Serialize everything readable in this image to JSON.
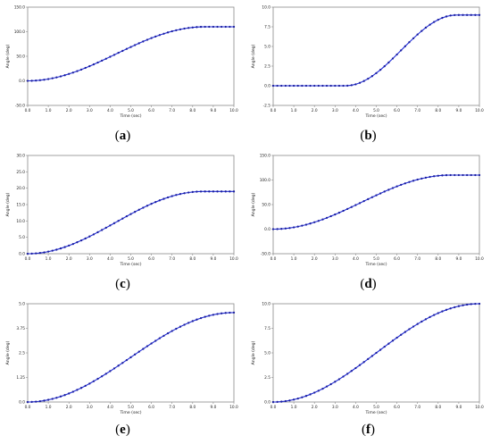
{
  "chart_data": [
    {
      "type": "line",
      "panel_label": "a",
      "xlabel": "Time (sec)",
      "ylabel": "Angle (deg)",
      "xlim": [
        0,
        10
      ],
      "ylim": [
        -50,
        150
      ],
      "xticks": [
        "0.0",
        "1.0",
        "2.0",
        "3.0",
        "4.0",
        "5.0",
        "6.0",
        "7.0",
        "8.0",
        "9.0",
        "10.0"
      ],
      "yticks": [
        "-50.0",
        "0.0",
        "50.0",
        "100.0",
        "150.0"
      ],
      "series": [
        {
          "start_value": 0,
          "end_value": 110,
          "ramp_start": 0,
          "ramp_end": 8.6,
          "color": "#1f2bd8"
        }
      ]
    },
    {
      "type": "line",
      "panel_label": "b",
      "xlabel": "Time (sec)",
      "ylabel": "Angle (deg)",
      "xlim": [
        0,
        10
      ],
      "ylim": [
        -2.5,
        10
      ],
      "xticks": [
        "0.0",
        "1.0",
        "2.0",
        "3.0",
        "4.0",
        "5.0",
        "6.0",
        "7.0",
        "8.0",
        "9.0",
        "10.0"
      ],
      "yticks": [
        "-2.5",
        "0.0",
        "2.5",
        "5.0",
        "7.5",
        "10.0"
      ],
      "series": [
        {
          "start_value": 0,
          "end_value": 9,
          "ramp_start": 3.5,
          "ramp_end": 8.9,
          "color": "#1f2bd8"
        }
      ]
    },
    {
      "type": "line",
      "panel_label": "c",
      "xlabel": "Time (sec)",
      "ylabel": "Angle (deg)",
      "xlim": [
        0,
        10
      ],
      "ylim": [
        0,
        30
      ],
      "xticks": [
        "0.0",
        "1.0",
        "2.0",
        "3.0",
        "4.0",
        "5.0",
        "6.0",
        "7.0",
        "8.0",
        "9.0",
        "10.0"
      ],
      "yticks": [
        "0.0",
        "5.0",
        "10.0",
        "15.0",
        "20.0",
        "25.0",
        "30.0"
      ],
      "series": [
        {
          "start_value": 0,
          "end_value": 19,
          "ramp_start": 0,
          "ramp_end": 8.5,
          "color": "#1f2bd8"
        }
      ]
    },
    {
      "type": "line",
      "panel_label": "d",
      "xlabel": "Time (sec)",
      "ylabel": "Angle (deg)",
      "xlim": [
        0,
        10
      ],
      "ylim": [
        -50,
        150
      ],
      "xticks": [
        "0.0",
        "1.0",
        "2.0",
        "3.0",
        "4.0",
        "5.0",
        "6.0",
        "7.0",
        "8.0",
        "9.0",
        "10.0"
      ],
      "yticks": [
        "-50.0",
        "0.0",
        "50.0",
        "100.0",
        "150.0"
      ],
      "series": [
        {
          "start_value": 0,
          "end_value": 110,
          "ramp_start": 0,
          "ramp_end": 8.6,
          "color": "#1f2bd8"
        }
      ]
    },
    {
      "type": "line",
      "panel_label": "e",
      "xlabel": "Time (sec)",
      "ylabel": "Angle (deg)",
      "xlim": [
        0,
        10
      ],
      "ylim": [
        0,
        5
      ],
      "xticks": [
        "0.0",
        "1.0",
        "2.0",
        "3.0",
        "4.0",
        "5.0",
        "6.0",
        "7.0",
        "8.0",
        "9.0",
        "10.0"
      ],
      "yticks": [
        "0.0",
        "1.25",
        "2.5",
        "3.75",
        "5.0"
      ],
      "series": [
        {
          "start_value": 0,
          "end_value": 4.55,
          "ramp_start": 0,
          "ramp_end": 10,
          "color": "#1f2bd8"
        }
      ]
    },
    {
      "type": "line",
      "panel_label": "f",
      "xlabel": "Time (sec)",
      "ylabel": "Angle (deg)",
      "xlim": [
        0,
        10
      ],
      "ylim": [
        0,
        10
      ],
      "xticks": [
        "0.0",
        "1.0",
        "2.0",
        "3.0",
        "4.0",
        "5.0",
        "6.0",
        "7.0",
        "8.0",
        "9.0",
        "10.0"
      ],
      "yticks": [
        "0.0",
        "2.5",
        "5.0",
        "7.5",
        "10.0"
      ],
      "series": [
        {
          "start_value": 0,
          "end_value": 10,
          "ramp_start": 0,
          "ramp_end": 10,
          "color": "#1f2bd8"
        }
      ]
    }
  ],
  "captions": [
    "a",
    "b",
    "c",
    "d",
    "e",
    "f"
  ]
}
